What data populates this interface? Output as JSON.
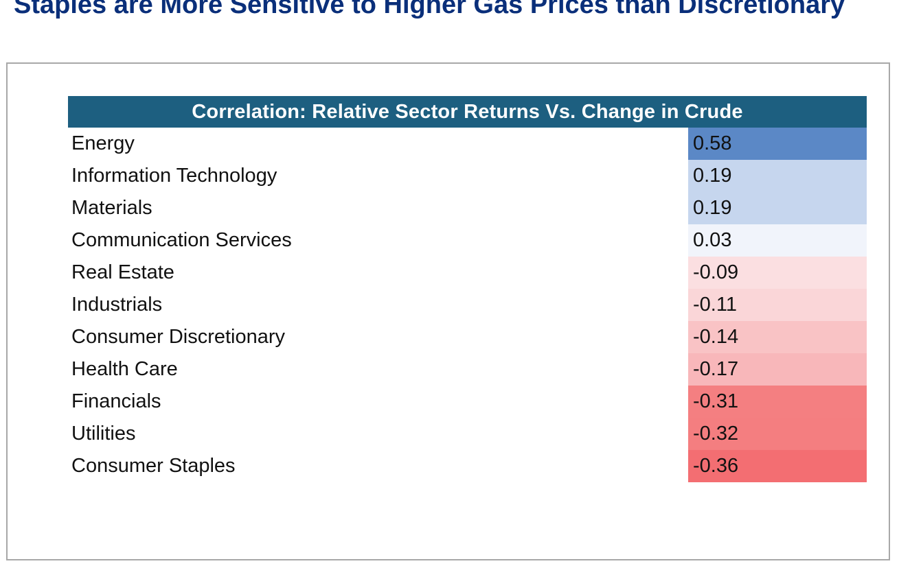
{
  "title": "Staples are More Sensitive to Higher Gas Prices than Discretionary",
  "chart_data": {
    "type": "table",
    "header": "Correlation: Relative Sector Returns Vs. Change in Crude",
    "rows": [
      {
        "label": "Energy",
        "value": "0.58",
        "color": "#5b88c6"
      },
      {
        "label": "Information Technology",
        "value": "0.19",
        "color": "#c6d6ee"
      },
      {
        "label": "Materials",
        "value": "0.19",
        "color": "#c6d6ee"
      },
      {
        "label": "Communication Services",
        "value": "0.03",
        "color": "#f1f4fb"
      },
      {
        "label": "Real Estate",
        "value": "-0.09",
        "color": "#fbdfe1"
      },
      {
        "label": "Industrials",
        "value": "-0.11",
        "color": "#fad6d8"
      },
      {
        "label": "Consumer Discretionary",
        "value": "-0.14",
        "color": "#f9c3c5"
      },
      {
        "label": "Health Care",
        "value": "-0.17",
        "color": "#f8b7ba"
      },
      {
        "label": "Financials",
        "value": "-0.31",
        "color": "#f47f81"
      },
      {
        "label": "Utilities",
        "value": "-0.32",
        "color": "#f47e80"
      },
      {
        "label": "Consumer Staples",
        "value": "-0.36",
        "color": "#f36e72"
      }
    ],
    "colors": {
      "header_background": "#1d5f80",
      "header_text": "#ffffff",
      "title_text": "#0a2f7a"
    }
  }
}
